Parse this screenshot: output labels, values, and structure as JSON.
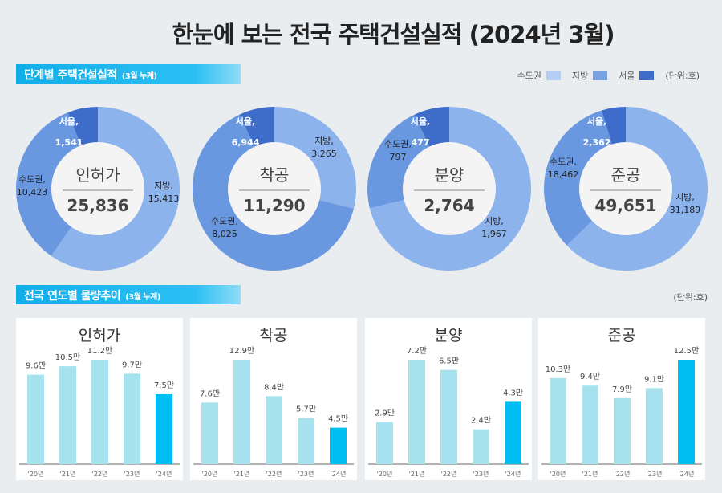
{
  "title": "한눈에 보는 전국 주택건설실적 (2024년 3월)",
  "section1": {
    "label": "단계별 주택건설실적",
    "sub": "(3월 누계)"
  },
  "legend": {
    "items": [
      {
        "label": "수도권",
        "color": "#8db3ec"
      },
      {
        "label": "지방",
        "color": "#6a98e0"
      },
      {
        "label": "서울",
        "color": "#3d6ccb"
      }
    ],
    "unit": "(단위:호)"
  },
  "section2": {
    "label": "전국 연도별 물량추이",
    "sub": "(3월 누계)",
    "unit": "(단위:호)"
  },
  "chart_data": [
    {
      "type": "pie",
      "title": "인허가",
      "total": "25,836",
      "slices": [
        {
          "name": "지방",
          "value": 15413,
          "label": "지방, 15,413"
        },
        {
          "name": "수도권",
          "value": 10423,
          "label": "수도권, 10,423"
        },
        {
          "name": "서울",
          "value": 1541,
          "label": "서울, 1,541"
        }
      ]
    },
    {
      "type": "pie",
      "title": "착공",
      "total": "11,290",
      "slices": [
        {
          "name": "지방",
          "value": 3265,
          "label": "지방, 3,265"
        },
        {
          "name": "수도권",
          "value": 8025,
          "label": "수도권, 8,025"
        },
        {
          "name": "서울",
          "value": 6944,
          "label": "서울, 6,944"
        }
      ]
    },
    {
      "type": "pie",
      "title": "분양",
      "total": "2,764",
      "slices": [
        {
          "name": "지방",
          "value": 1967,
          "label": "지방, 1,967"
        },
        {
          "name": "수도권",
          "value": 797,
          "label": "수도권, 797"
        },
        {
          "name": "서울",
          "value": 477,
          "label": "서울, 477"
        }
      ]
    },
    {
      "type": "pie",
      "title": "준공",
      "total": "49,651",
      "slices": [
        {
          "name": "지방",
          "value": 31189,
          "label": "지방, 31,189"
        },
        {
          "name": "수도권",
          "value": 18462,
          "label": "수도권, 18,462"
        },
        {
          "name": "서울",
          "value": 2362,
          "label": "서울, 2,362"
        }
      ]
    },
    {
      "type": "bar",
      "title": "인허가",
      "categories": [
        "'20년",
        "'21년",
        "'22년",
        "'23년",
        "'24년"
      ],
      "values": [
        9.6,
        10.5,
        11.2,
        9.7,
        7.5
      ],
      "labels": [
        "9.6만",
        "10.5만",
        "11.2만",
        "9.7만",
        "7.5만"
      ]
    },
    {
      "type": "bar",
      "title": "착공",
      "categories": [
        "'20년",
        "'21년",
        "'22년",
        "'23년",
        "'24년"
      ],
      "values": [
        7.6,
        12.9,
        8.4,
        5.7,
        4.5
      ],
      "labels": [
        "7.6만",
        "12.9만",
        "8.4만",
        "5.7만",
        "4.5만"
      ]
    },
    {
      "type": "bar",
      "title": "분양",
      "categories": [
        "'20년",
        "'21년",
        "'22년",
        "'23년",
        "'24년"
      ],
      "values": [
        2.9,
        7.2,
        6.5,
        2.4,
        4.3
      ],
      "labels": [
        "2.9만",
        "7.2만",
        "6.5만",
        "2.4만",
        "4.3만"
      ]
    },
    {
      "type": "bar",
      "title": "준공",
      "categories": [
        "'20년",
        "'21년",
        "'22년",
        "'23년",
        "'24년"
      ],
      "values": [
        10.3,
        9.4,
        7.9,
        9.1,
        12.5
      ],
      "labels": [
        "10.3만",
        "9.4만",
        "7.9만",
        "9.1만",
        "12.5만"
      ]
    }
  ],
  "colors": {
    "region_light": "#8db3ec",
    "region_mid": "#6a98e0",
    "seoul": "#3d6ccb",
    "bar": "#a6e3ef",
    "bar_highlight": "#00bdf2"
  }
}
